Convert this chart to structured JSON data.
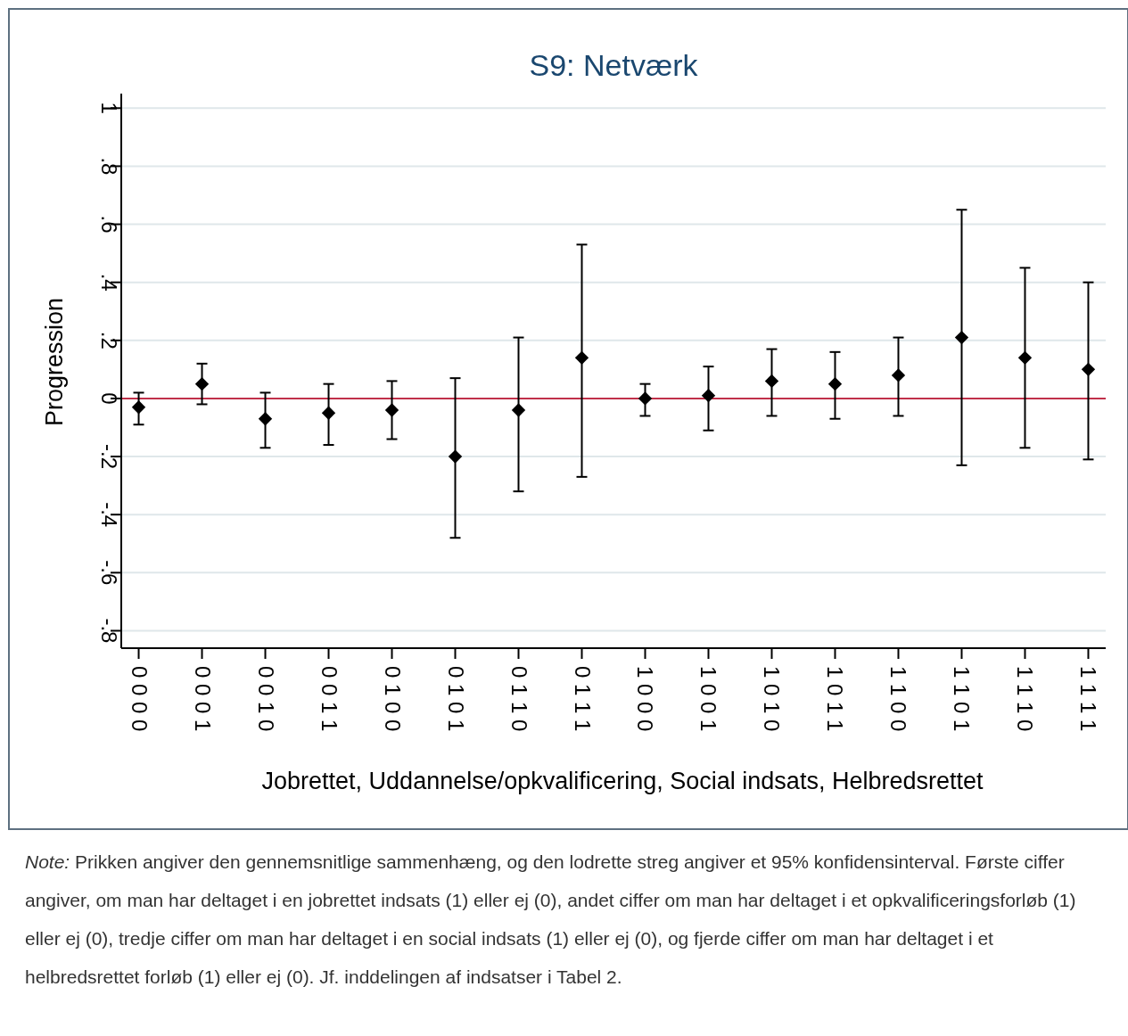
{
  "chart_data": {
    "type": "scatter",
    "title": "S9: Netværk",
    "xlabel": "Jobrettet, Uddannelse/opkvalificering, Social indsats, Helbredsrettet",
    "ylabel": "Progression",
    "categories": [
      "0 0 0 0",
      "0 0 0 1",
      "0 0 1 0",
      "0 0 1 1",
      "0 1 0 0",
      "0 1 0 1",
      "0 1 1 0",
      "0 1 1 1",
      "1 0 0 0",
      "1 0 0 1",
      "1 0 1 0",
      "1 0 1 1",
      "1 1 0 0",
      "1 1 0 1",
      "1 1 1 0",
      "1 1 1 1"
    ],
    "series": [
      {
        "color": "#000000",
        "values": [
          -0.03,
          0.05,
          -0.07,
          -0.05,
          -0.04,
          -0.2,
          -0.04,
          0.14,
          0.0,
          0.01,
          0.06,
          0.05,
          0.08,
          0.21,
          0.14,
          0.1
        ],
        "errors": [
          [
            -0.09,
            0.02
          ],
          [
            -0.02,
            0.12
          ],
          [
            -0.17,
            0.02
          ],
          [
            -0.16,
            0.05
          ],
          [
            -0.14,
            0.06
          ],
          [
            -0.48,
            0.07
          ],
          [
            -0.32,
            0.21
          ],
          [
            -0.27,
            0.53
          ],
          [
            -0.06,
            0.05
          ],
          [
            -0.11,
            0.11
          ],
          [
            -0.06,
            0.17
          ],
          [
            -0.07,
            0.16
          ],
          [
            -0.06,
            0.21
          ],
          [
            -0.23,
            0.65
          ],
          [
            -0.17,
            0.45
          ],
          [
            -0.21,
            0.4
          ]
        ]
      }
    ],
    "marker": "diamond",
    "ylim": [
      -0.86,
      1.05
    ],
    "yticks": [
      {
        "value": -0.8,
        "label": "-.8"
      },
      {
        "value": -0.6,
        "label": "-.6"
      },
      {
        "value": -0.4,
        "label": "-.4"
      },
      {
        "value": -0.2,
        "label": "-.2"
      },
      0,
      {
        "value": 0.2,
        "label": ".2"
      },
      {
        "value": 0.4,
        "label": ".4"
      },
      {
        "value": 0.6,
        "label": ".6"
      },
      {
        "value": 0.8,
        "label": ".8"
      },
      1
    ],
    "grid": "y",
    "ref_lines": [
      {
        "axis": "y",
        "value": 0,
        "color": "#c0304a"
      }
    ],
    "annotations": [
      "Note: Prikken angiver den gennemsnitlige sammenhæng, og den lodrette streg angiver et 95% konfidensinterval. Første ciffer angiver, om man har deltaget i en jobrettet indsats (1) eller ej (0), andet ciffer om man har deltaget i et opkvalificeringsforløb (1) eller ej (0), tredje ciffer om man har deltaget i en social indsats (1) eller ej (0), og fjerde ciffer om man har deltaget i et helbredsrettet forløb (1) eller ej (0). Jf. inddelingen af indsatser i Tabel 2."
    ]
  }
}
